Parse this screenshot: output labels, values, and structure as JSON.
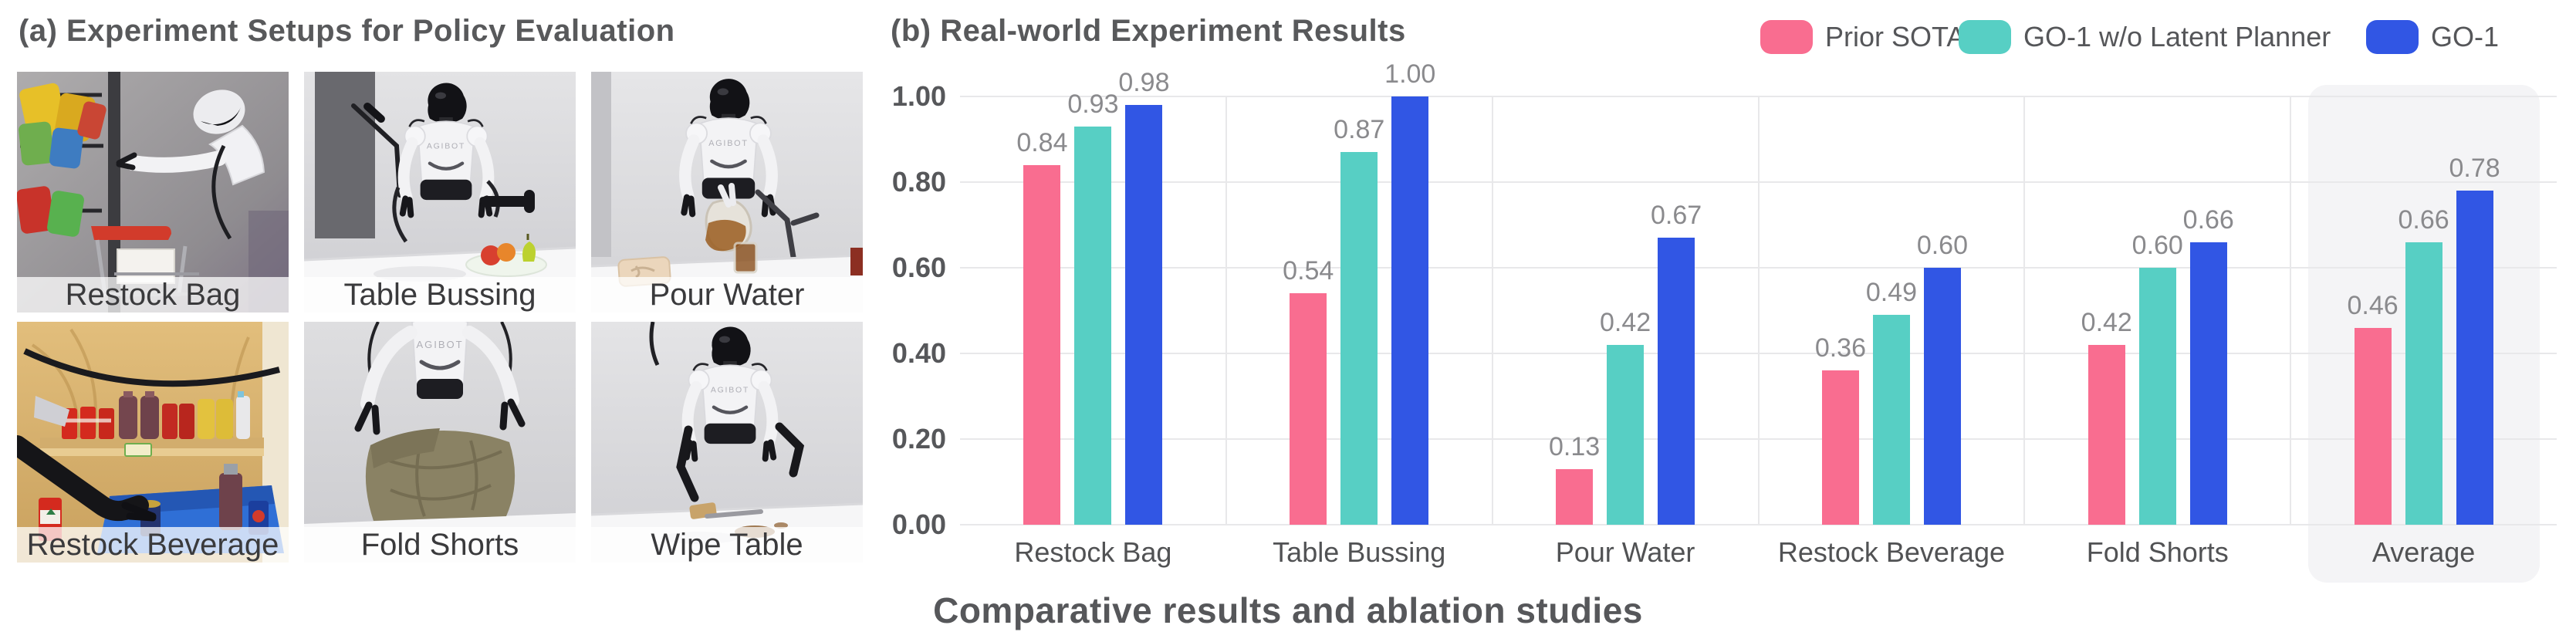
{
  "left_panel": {
    "title": "(a) Experiment Setups for Policy Evaluation",
    "robot_logo": "AGIBOT",
    "tiles": [
      {
        "label": "Restock Bag"
      },
      {
        "label": "Table Bussing"
      },
      {
        "label": "Pour Water"
      },
      {
        "label": "Restock Beverage"
      },
      {
        "label": "Fold Shorts"
      },
      {
        "label": "Wipe Table"
      }
    ]
  },
  "right_panel": {
    "title": "(b) Real-world Experiment Results",
    "caption": "Comparative results and ablation studies"
  },
  "chart_data": {
    "type": "bar",
    "title": "(b) Real-world Experiment Results",
    "categories": [
      "Restock Bag",
      "Table Bussing",
      "Pour Water",
      "Restock Beverage",
      "Fold Shorts",
      "Average"
    ],
    "series": [
      {
        "name": "Prior SOTA",
        "color": "#F96D90",
        "values": [
          0.84,
          0.54,
          0.13,
          0.36,
          0.42,
          0.46
        ]
      },
      {
        "name": "GO-1 w/o Latent Planner",
        "color": "#57CFC4",
        "values": [
          0.93,
          0.87,
          0.42,
          0.49,
          0.6,
          0.66
        ]
      },
      {
        "name": "GO-1",
        "color": "#3156E4",
        "values": [
          0.98,
          1.0,
          0.67,
          0.6,
          0.66,
          0.78
        ]
      }
    ],
    "ylabel": "",
    "xlabel": "",
    "ylim": [
      0,
      1.0
    ],
    "yticks": [
      0.0,
      0.2,
      0.4,
      0.6,
      0.8,
      1.0
    ],
    "ytick_format": "0.00",
    "grid": "horizontal",
    "legend_position": "top-right",
    "highlighted_category": "Average",
    "highlight_fill": "#F4F4F6",
    "value_labels": true
  }
}
